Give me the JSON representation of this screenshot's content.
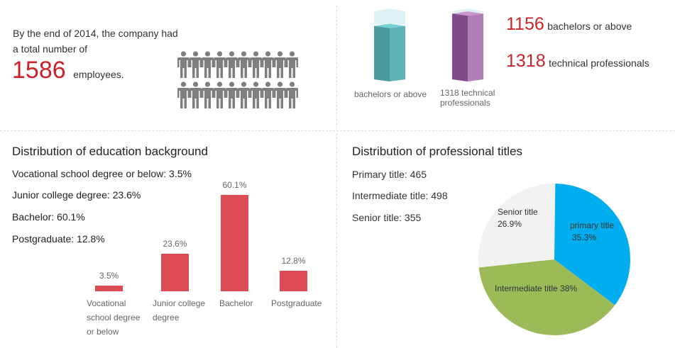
{
  "summary": {
    "intro": "By the end of 2014, the company had",
    "intro2": "a total number of",
    "total": "1586",
    "total_suffix": "employees."
  },
  "columns": [
    {
      "label": "bachelors or above",
      "color": "#4e9fa3",
      "fill": 0.78
    },
    {
      "label": "1318 technical",
      "label2": "professionals",
      "color": "#8b4a91",
      "fill": 0.95
    }
  ],
  "stats": [
    {
      "value": "1156",
      "label": "bachelors or above"
    },
    {
      "value": "1318",
      "label": "technical professionals"
    }
  ],
  "education": {
    "title": "Distribution of education background",
    "lines": [
      "Vocational school degree or below: 3.5%",
      "Junior college degree: 23.6%",
      "Bachelor: 60.1%",
      "Postgraduate: 12.8%"
    ]
  },
  "titles": {
    "title": "Distribution of professional titles",
    "lines": [
      "Primary title: 465",
      "Intermediate title: 498",
      "Senior title: 355"
    ]
  },
  "chart_data": [
    {
      "type": "bar",
      "title": "Distribution of education background",
      "categories": [
        "Vocational school degree or below",
        "Junior college degree",
        "Bachelor",
        "Postgraduate"
      ],
      "cat_lines": [
        [
          "Vocational",
          "school degree",
          "or below"
        ],
        [
          "Junior college",
          "degree"
        ],
        [
          "Bachelor"
        ],
        [
          "Postgraduate"
        ]
      ],
      "values": [
        3.5,
        23.6,
        60.1,
        12.8
      ],
      "labels": [
        "3.5%",
        "23.6%",
        "60.1%",
        "12.8%"
      ],
      "color": "#dd4b55"
    },
    {
      "type": "pie",
      "title": "Distribution of professional titles",
      "slices": [
        {
          "name": "primary title",
          "value": 35.3,
          "label": "35.3%",
          "color": "#00aeef"
        },
        {
          "name": "Intermediate title",
          "value": 38,
          "label": "38%",
          "color": "#9bbb59"
        },
        {
          "name": "Senior title",
          "value": 26.9,
          "label": "26.9%",
          "color": "#f2f2f2"
        }
      ]
    }
  ]
}
